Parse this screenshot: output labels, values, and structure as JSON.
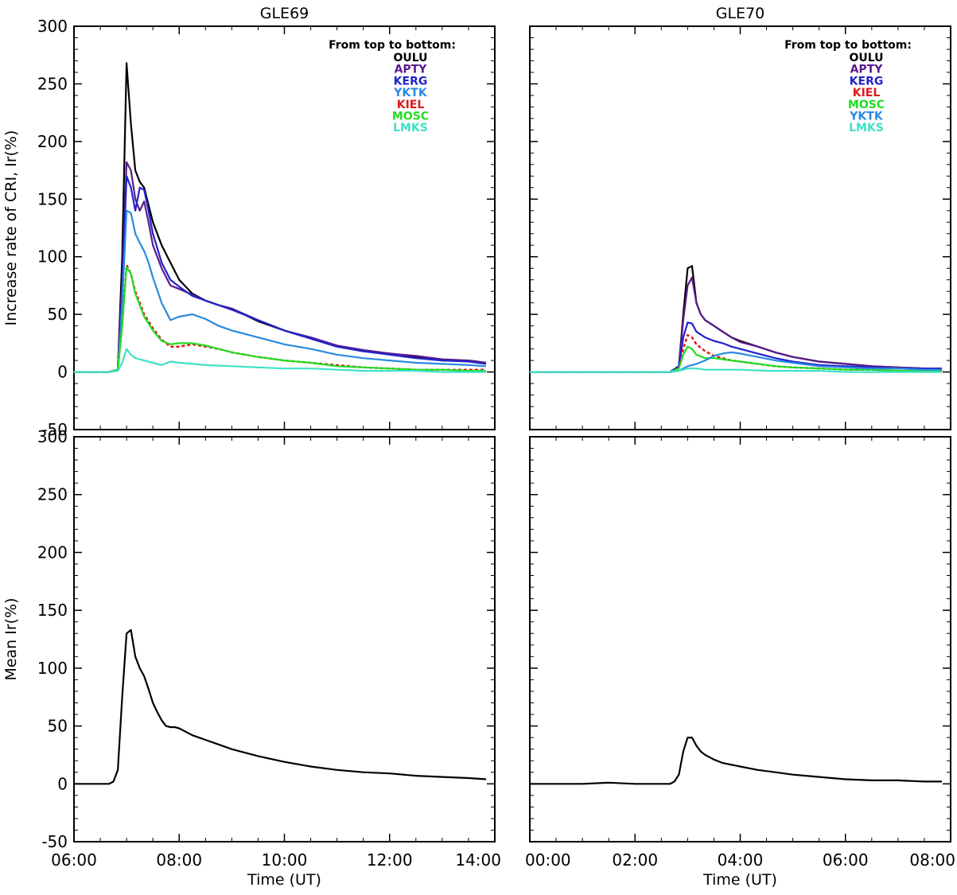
{
  "chart_data": [
    {
      "type": "line",
      "title": "GLE69",
      "ylabel": "Increase rate of CRI, Ir(%)",
      "xlim": [
        "06:00",
        "14:00"
      ],
      "ylim": [
        -50,
        300
      ],
      "xticks": [
        "06:00",
        "08:00",
        "10:00",
        "12:00",
        "14:00"
      ],
      "yticks": [
        "-50",
        "0",
        "50",
        "100",
        "150",
        "200",
        "250",
        "300"
      ],
      "legend_title": "From top to bottom:",
      "legend_position": "top-right",
      "series": [
        {
          "name": "OULU",
          "color": "#000000",
          "style": "solid",
          "x": [
            "06:00",
            "06:40",
            "06:50",
            "06:55",
            "07:00",
            "07:05",
            "07:10",
            "07:15",
            "07:20",
            "07:25",
            "07:30",
            "07:40",
            "07:50",
            "08:00",
            "08:15",
            "08:30",
            "08:45",
            "09:00",
            "09:30",
            "10:00",
            "10:30",
            "11:00",
            "11:30",
            "12:00",
            "12:30",
            "13:00",
            "13:30",
            "13:50"
          ],
          "y": [
            0,
            0,
            2,
            100,
            268,
            215,
            175,
            165,
            160,
            145,
            130,
            110,
            95,
            80,
            68,
            62,
            58,
            55,
            44,
            36,
            29,
            22,
            18,
            16,
            13,
            10,
            10,
            8
          ]
        },
        {
          "name": "APTY",
          "color": "#5a1a8c",
          "style": "solid",
          "x": [
            "06:00",
            "06:40",
            "06:50",
            "06:55",
            "07:00",
            "07:05",
            "07:10",
            "07:15",
            "07:20",
            "07:25",
            "07:30",
            "07:40",
            "07:50",
            "08:00",
            "08:15",
            "08:30",
            "08:45",
            "09:00",
            "09:30",
            "10:00",
            "10:30",
            "11:00",
            "11:30",
            "12:00",
            "12:30",
            "13:00",
            "13:30",
            "13:50"
          ],
          "y": [
            0,
            0,
            2,
            80,
            182,
            175,
            150,
            140,
            148,
            130,
            110,
            90,
            75,
            72,
            67,
            62,
            58,
            55,
            45,
            36,
            30,
            23,
            19,
            16,
            14,
            11,
            10,
            8
          ]
        },
        {
          "name": "KERG",
          "color": "#2222cc",
          "style": "solid",
          "x": [
            "06:00",
            "06:40",
            "06:50",
            "06:55",
            "07:00",
            "07:05",
            "07:10",
            "07:15",
            "07:20",
            "07:25",
            "07:30",
            "07:40",
            "07:50",
            "08:00",
            "08:15",
            "08:30",
            "08:45",
            "09:00",
            "09:30",
            "10:00",
            "10:30",
            "11:00",
            "11:30",
            "12:00",
            "12:30",
            "13:00",
            "13:30",
            "13:50"
          ],
          "y": [
            0,
            0,
            2,
            70,
            170,
            160,
            140,
            160,
            158,
            140,
            120,
            95,
            80,
            74,
            66,
            62,
            58,
            54,
            45,
            36,
            29,
            22,
            18,
            15,
            12,
            10,
            9,
            7
          ]
        },
        {
          "name": "YKTK",
          "color": "#2a8ae0",
          "style": "solid",
          "x": [
            "06:00",
            "06:40",
            "06:50",
            "06:55",
            "07:00",
            "07:05",
            "07:10",
            "07:15",
            "07:20",
            "07:25",
            "07:30",
            "07:40",
            "07:50",
            "08:00",
            "08:15",
            "08:30",
            "08:45",
            "09:00",
            "09:30",
            "10:00",
            "10:30",
            "11:00",
            "11:30",
            "12:00",
            "12:30",
            "13:00",
            "13:30",
            "13:50"
          ],
          "y": [
            0,
            0,
            2,
            60,
            140,
            138,
            120,
            112,
            105,
            95,
            82,
            60,
            45,
            48,
            50,
            46,
            40,
            36,
            30,
            24,
            20,
            15,
            12,
            10,
            8,
            7,
            6,
            5
          ]
        },
        {
          "name": "KIEL",
          "color": "#e01818",
          "style": "dotted",
          "x": [
            "06:00",
            "06:40",
            "06:50",
            "06:55",
            "07:00",
            "07:05",
            "07:10",
            "07:15",
            "07:20",
            "07:30",
            "07:40",
            "07:50",
            "08:00",
            "08:15",
            "08:30",
            "08:45",
            "09:00",
            "09:30",
            "10:00",
            "10:30",
            "11:00",
            "11:30",
            "12:00",
            "12:30",
            "13:00",
            "13:30",
            "13:50"
          ],
          "y": [
            0,
            0,
            2,
            40,
            93,
            85,
            70,
            60,
            50,
            38,
            28,
            22,
            22,
            24,
            22,
            20,
            17,
            13,
            10,
            8,
            6,
            4,
            3,
            2,
            2,
            2,
            2
          ]
        },
        {
          "name": "MOSC",
          "color": "#22dd22",
          "style": "solid",
          "x": [
            "06:00",
            "06:40",
            "06:50",
            "06:55",
            "07:00",
            "07:05",
            "07:10",
            "07:15",
            "07:20",
            "07:30",
            "07:40",
            "07:50",
            "08:00",
            "08:15",
            "08:30",
            "08:45",
            "09:00",
            "09:30",
            "10:00",
            "10:30",
            "11:00",
            "11:30",
            "12:00",
            "12:30",
            "13:00",
            "13:30",
            "13:50"
          ],
          "y": [
            0,
            0,
            2,
            40,
            91,
            85,
            68,
            58,
            48,
            36,
            27,
            24,
            25,
            25,
            23,
            20,
            17,
            13,
            10,
            8,
            5,
            4,
            3,
            2,
            2,
            1,
            1
          ]
        },
        {
          "name": "LMKS",
          "color": "#3fe0c8",
          "style": "solid",
          "x": [
            "06:00",
            "06:40",
            "06:50",
            "06:55",
            "07:00",
            "07:05",
            "07:10",
            "07:20",
            "07:30",
            "07:40",
            "07:50",
            "08:00",
            "08:15",
            "08:30",
            "09:00",
            "09:30",
            "10:00",
            "10:30",
            "11:00",
            "11:30",
            "12:00",
            "12:30",
            "13:00",
            "13:30",
            "13:50"
          ],
          "y": [
            0,
            0,
            1,
            8,
            20,
            15,
            12,
            10,
            8,
            6,
            9,
            8,
            7,
            6,
            5,
            4,
            3,
            3,
            2,
            1,
            1,
            1,
            0,
            0,
            0
          ]
        }
      ]
    },
    {
      "type": "line",
      "title": "GLE70",
      "ylabel": "",
      "xlim": [
        "00:00",
        "08:00"
      ],
      "ylim": [
        -50,
        300
      ],
      "xticks": [
        "00:00",
        "02:00",
        "04:00",
        "06:00",
        "08:00"
      ],
      "yticks": [
        "-50",
        "0",
        "50",
        "100",
        "150",
        "200",
        "250",
        "300"
      ],
      "legend_title": "From top to bottom:",
      "legend_position": "top-right",
      "series": [
        {
          "name": "OULU",
          "color": "#000000",
          "style": "solid",
          "x": [
            "00:00",
            "01:00",
            "02:00",
            "02:40",
            "02:50",
            "02:55",
            "03:00",
            "03:05",
            "03:10",
            "03:15",
            "03:20",
            "03:30",
            "03:40",
            "03:50",
            "04:00",
            "04:20",
            "04:40",
            "05:00",
            "05:30",
            "06:00",
            "06:30",
            "07:00",
            "07:30",
            "07:50"
          ],
          "y": [
            0,
            0,
            0,
            0,
            5,
            50,
            90,
            92,
            60,
            50,
            45,
            40,
            35,
            30,
            27,
            22,
            17,
            13,
            9,
            7,
            5,
            4,
            3,
            3
          ]
        },
        {
          "name": "APTY",
          "color": "#5a1a8c",
          "style": "solid",
          "x": [
            "00:00",
            "01:00",
            "02:00",
            "02:40",
            "02:50",
            "02:55",
            "03:00",
            "03:05",
            "03:10",
            "03:15",
            "03:20",
            "03:30",
            "03:40",
            "03:50",
            "04:00",
            "04:20",
            "04:40",
            "05:00",
            "05:30",
            "06:00",
            "06:30",
            "07:00",
            "07:30",
            "07:50"
          ],
          "y": [
            0,
            0,
            0,
            0,
            5,
            45,
            75,
            82,
            60,
            50,
            45,
            40,
            35,
            30,
            26,
            22,
            17,
            13,
            9,
            7,
            5,
            4,
            3,
            3
          ]
        },
        {
          "name": "KERG",
          "color": "#2222cc",
          "style": "solid",
          "x": [
            "00:00",
            "01:00",
            "02:00",
            "02:40",
            "02:50",
            "02:55",
            "03:00",
            "03:05",
            "03:10",
            "03:20",
            "03:30",
            "03:40",
            "03:50",
            "04:00",
            "04:20",
            "04:40",
            "05:00",
            "05:30",
            "06:00",
            "06:30",
            "07:00",
            "07:30",
            "07:50"
          ],
          "y": [
            0,
            0,
            0,
            0,
            5,
            30,
            43,
            42,
            35,
            30,
            27,
            25,
            22,
            20,
            16,
            12,
            9,
            6,
            5,
            4,
            3,
            3,
            3
          ]
        },
        {
          "name": "KIEL",
          "color": "#e01818",
          "style": "dotted",
          "x": [
            "00:00",
            "01:00",
            "02:00",
            "02:40",
            "02:50",
            "02:55",
            "03:00",
            "03:05",
            "03:10",
            "03:20",
            "03:30",
            "03:40",
            "03:50",
            "04:00",
            "04:20",
            "04:40",
            "05:00",
            "05:30",
            "06:00",
            "06:30",
            "07:00",
            "07:30",
            "07:50"
          ],
          "y": [
            0,
            0,
            0,
            0,
            3,
            20,
            32,
            30,
            24,
            18,
            14,
            12,
            10,
            9,
            7,
            5,
            4,
            3,
            2,
            2,
            1,
            1,
            1
          ]
        },
        {
          "name": "MOSC",
          "color": "#22dd22",
          "style": "solid",
          "x": [
            "00:00",
            "01:00",
            "02:00",
            "02:40",
            "02:50",
            "02:55",
            "03:00",
            "03:05",
            "03:10",
            "03:20",
            "03:30",
            "03:40",
            "03:50",
            "04:00",
            "04:20",
            "04:40",
            "05:00",
            "05:30",
            "06:00",
            "06:30",
            "07:00",
            "07:30",
            "07:50"
          ],
          "y": [
            0,
            0,
            0,
            0,
            3,
            15,
            22,
            20,
            15,
            12,
            12,
            11,
            10,
            9,
            7,
            5,
            4,
            3,
            2,
            2,
            1,
            1,
            1
          ]
        },
        {
          "name": "YKTK",
          "color": "#2a8ae0",
          "style": "solid",
          "x": [
            "00:00",
            "01:00",
            "02:00",
            "02:40",
            "02:50",
            "02:55",
            "03:00",
            "03:05",
            "03:10",
            "03:20",
            "03:30",
            "03:40",
            "03:50",
            "04:00",
            "04:20",
            "04:40",
            "05:00",
            "05:30",
            "06:00",
            "06:30",
            "07:00",
            "07:30",
            "07:50"
          ],
          "y": [
            0,
            0,
            0,
            0,
            1,
            3,
            5,
            6,
            7,
            10,
            14,
            16,
            17,
            16,
            13,
            10,
            8,
            5,
            4,
            3,
            3,
            2,
            2
          ]
        },
        {
          "name": "LMKS",
          "color": "#3fe0c8",
          "style": "solid",
          "x": [
            "00:00",
            "01:00",
            "02:00",
            "02:40",
            "02:50",
            "03:00",
            "03:10",
            "03:20",
            "03:40",
            "04:00",
            "04:30",
            "05:00",
            "05:30",
            "06:00",
            "06:30",
            "07:00",
            "07:30",
            "07:50"
          ],
          "y": [
            0,
            0,
            0,
            0,
            1,
            3,
            3,
            2,
            2,
            2,
            1,
            1,
            1,
            0,
            0,
            0,
            0,
            0
          ]
        }
      ]
    },
    {
      "type": "line",
      "title": "",
      "xlabel": "Time (UT)",
      "ylabel": "Mean Ir(%)",
      "xlim": [
        "06:00",
        "14:00"
      ],
      "ylim": [
        -50,
        300
      ],
      "xticks": [
        "06:00",
        "08:00",
        "10:00",
        "12:00",
        "14:00"
      ],
      "yticks": [
        "-50",
        "0",
        "50",
        "100",
        "150",
        "200",
        "250",
        "300"
      ],
      "series": [
        {
          "color": "#000000",
          "style": "solid",
          "x": [
            "06:00",
            "06:40",
            "06:45",
            "06:50",
            "06:55",
            "07:00",
            "07:05",
            "07:10",
            "07:15",
            "07:20",
            "07:25",
            "07:30",
            "07:35",
            "07:40",
            "07:45",
            "07:50",
            "07:55",
            "08:00",
            "08:15",
            "08:30",
            "08:45",
            "09:00",
            "09:30",
            "10:00",
            "10:30",
            "11:00",
            "11:30",
            "12:00",
            "12:30",
            "13:00",
            "13:30",
            "13:50"
          ],
          "y": [
            0,
            0,
            2,
            12,
            75,
            130,
            133,
            110,
            100,
            93,
            82,
            70,
            62,
            55,
            50,
            49,
            49,
            48,
            42,
            38,
            34,
            30,
            24,
            19,
            15,
            12,
            10,
            9,
            7,
            6,
            5,
            4
          ]
        }
      ]
    },
    {
      "type": "line",
      "title": "",
      "xlabel": "Time (UT)",
      "ylabel": "",
      "xlim": [
        "00:00",
        "08:00"
      ],
      "ylim": [
        -50,
        300
      ],
      "xticks": [
        "00:00",
        "02:00",
        "04:00",
        "06:00",
        "08:00"
      ],
      "yticks": [
        "-50",
        "0",
        "50",
        "100",
        "150",
        "200",
        "250",
        "300"
      ],
      "series": [
        {
          "color": "#000000",
          "style": "solid",
          "x": [
            "00:00",
            "01:00",
            "01:30",
            "02:00",
            "02:40",
            "02:45",
            "02:50",
            "02:55",
            "03:00",
            "03:05",
            "03:10",
            "03:15",
            "03:20",
            "03:30",
            "03:40",
            "04:00",
            "04:20",
            "04:40",
            "05:00",
            "05:30",
            "06:00",
            "06:30",
            "07:00",
            "07:30",
            "07:50"
          ],
          "y": [
            0,
            0,
            1,
            0,
            0,
            2,
            8,
            28,
            40,
            40,
            33,
            28,
            25,
            21,
            18,
            15,
            12,
            10,
            8,
            6,
            4,
            3,
            3,
            2,
            2
          ]
        }
      ]
    }
  ]
}
